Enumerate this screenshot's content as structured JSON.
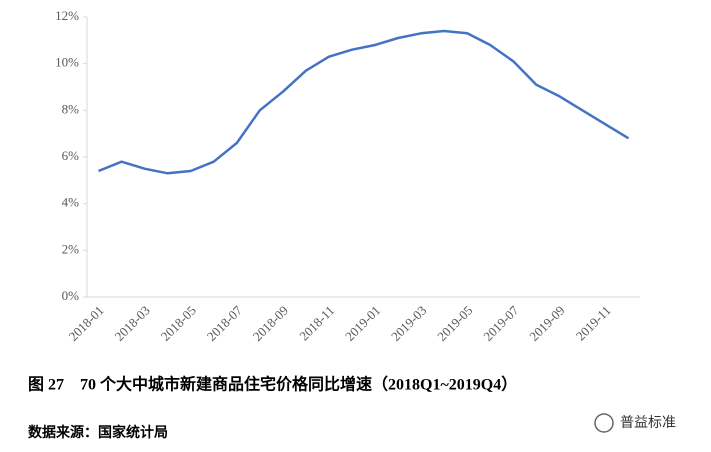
{
  "chart_data": {
    "type": "line",
    "caption": "图 27　70 个大中城市新建商品住宅价格同比增速（2018Q1~2019Q4）",
    "source": "数据来源：国家统计局",
    "watermark": "普益标准",
    "categories": [
      "2018-01",
      null,
      "2018-03",
      null,
      "2018-05",
      null,
      "2018-07",
      null,
      "2018-09",
      null,
      "2018-11",
      null,
      "2019-01",
      null,
      "2019-03",
      null,
      "2019-05",
      null,
      "2019-07",
      null,
      "2019-09",
      null,
      "2019-11",
      null
    ],
    "values": [
      5.4,
      5.8,
      5.5,
      5.3,
      5.4,
      5.8,
      6.6,
      8.0,
      8.8,
      9.7,
      10.3,
      10.6,
      10.8,
      11.1,
      11.3,
      11.4,
      11.3,
      10.8,
      10.1,
      9.1,
      8.6,
      8.0,
      7.4,
      6.8
    ],
    "color": "#4472c4",
    "ylim": [
      0,
      12
    ],
    "yticks": [
      {
        "value": 0,
        "label": "0%"
      },
      {
        "value": 2,
        "label": "2%"
      },
      {
        "value": 4,
        "label": "4%"
      },
      {
        "value": 6,
        "label": "6%"
      },
      {
        "value": 8,
        "label": "8%"
      },
      {
        "value": 10,
        "label": "10%"
      },
      {
        "value": 12,
        "label": "12%"
      }
    ],
    "grid": false
  }
}
